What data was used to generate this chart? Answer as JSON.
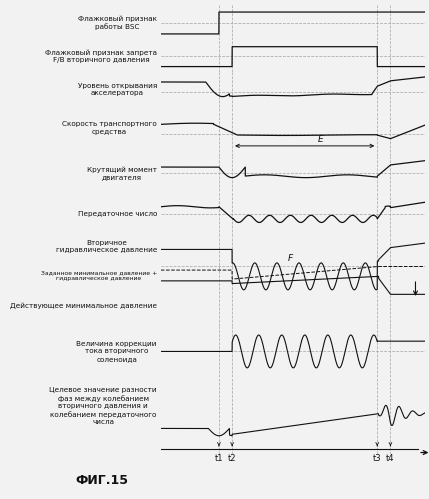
{
  "title": "ФИГ.15",
  "labels": [
    "Флажковый признак\nработы BSC",
    "Флажковый признак запрета\nF/B вторичного давления",
    "Уровень открывания\nакселератора",
    "Скорость транспортного\nсредства",
    "Крутящий момент\nдвигателя",
    "Передаточное число",
    "Вторичное\nгидравлическое давление",
    "Заданное минимальное давление +\nгидравлическое давление",
    "Действующее минимальное давление",
    "Величина коррекции\nтока вторичного\nсоленоида",
    "Целевое значение разности\nфаз между колебанием\nвторичного давления и\nколебанием передаточного\nчисла"
  ],
  "t1": 0.22,
  "t2": 0.27,
  "t3": 0.82,
  "t4": 0.87,
  "bg": "#f2f2f2",
  "lc": "#111111",
  "dc": "#aaaaaa",
  "lfs": 5.2,
  "tfs": 9
}
